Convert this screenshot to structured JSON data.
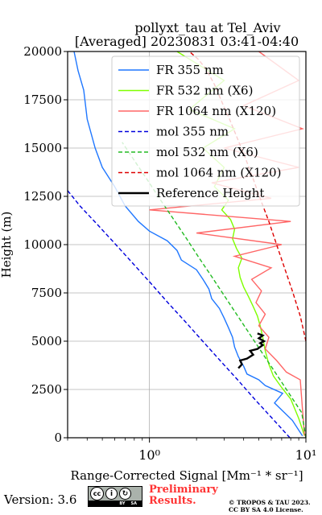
{
  "chart_data": {
    "type": "line",
    "title": "pollyxt_tau at Tel_Aviv",
    "subtitle": "[Averaged] 20230831 03:41-04:40",
    "xlabel": "Range-Corrected Signal [Mm⁻¹ * sr⁻¹]",
    "ylabel": "Height (m)",
    "xscale": "log",
    "xlim": [
      0.3,
      10
    ],
    "ylim": [
      0,
      20000
    ],
    "x_tick_labels": [
      "10⁰",
      "10¹"
    ],
    "y_ticks": [
      0,
      2500,
      5000,
      7500,
      10000,
      12500,
      15000,
      17500,
      20000
    ],
    "y_tick_labels": [
      "0",
      "2500",
      "5000",
      "7500",
      "10000",
      "12500",
      "15000",
      "17500",
      "20000"
    ],
    "grid": true,
    "legend_position": "upper right",
    "series": [
      {
        "name": "FR 355 nm",
        "color": "#1f77ff",
        "style": "solid",
        "x": [
          9.5,
          8.2,
          6.3,
          7.1,
          5.5,
          5.0,
          4.2,
          4.0,
          3.7,
          3.5,
          3.4,
          3.2,
          3.0,
          2.8,
          2.5,
          2.4,
          2.2,
          2.0,
          1.6,
          1.5,
          1.3,
          1.0,
          0.85,
          0.7,
          0.6,
          0.5,
          0.45,
          0.4,
          0.38,
          0.35,
          0.33
        ],
        "y": [
          100,
          900,
          1800,
          2300,
          2700,
          3000,
          3300,
          3700,
          4200,
          4700,
          5200,
          5700,
          6200,
          6700,
          7200,
          7700,
          8200,
          8700,
          9200,
          9700,
          10200,
          10700,
          11200,
          12000,
          13000,
          14000,
          15000,
          16500,
          18000,
          19000,
          20000
        ]
      },
      {
        "name": "FR 532 nm (X6)",
        "color": "#7fff00",
        "style": "solid",
        "x": [
          9.8,
          9.0,
          8.0,
          7.0,
          6.2,
          5.8,
          5.5,
          5.3,
          5.1,
          4.9,
          4.6,
          4.3,
          4.0,
          3.8,
          3.7,
          3.9,
          3.6,
          3.4,
          3.5,
          3.3,
          2.9,
          3.2,
          2.6,
          3.0,
          2.2,
          3.5,
          1.8,
          3.0,
          1.5
        ],
        "y": [
          100,
          1000,
          2000,
          2600,
          3200,
          3800,
          4500,
          5200,
          5800,
          6300,
          6800,
          7300,
          7800,
          8300,
          8800,
          9300,
          9800,
          10300,
          10800,
          11300,
          11800,
          12300,
          13000,
          14000,
          15000,
          16000,
          17000,
          18500,
          20000
        ]
      },
      {
        "name": "FR 1064 nm (X120)",
        "color": "#ff6666",
        "style": "solid",
        "x": [
          9.8,
          9.5,
          9.2,
          7.5,
          6.5,
          5.5,
          5.8,
          5.0,
          5.5,
          4.8,
          5.2,
          4.5,
          6.0,
          3.5,
          7.0,
          2.0,
          8.0,
          1.0,
          6.0,
          2.5,
          9.0,
          3.0,
          9.5,
          4.0,
          9.0,
          5.0
        ],
        "y": [
          100,
          1500,
          3000,
          3400,
          4000,
          4600,
          5200,
          5800,
          6400,
          7000,
          7600,
          8200,
          8800,
          9400,
          10000,
          10600,
          11200,
          11800,
          12400,
          13200,
          14000,
          15000,
          16000,
          17200,
          18500,
          20000
        ]
      },
      {
        "name": "mol 355 nm",
        "color": "#0000dd",
        "style": "dashed",
        "x": [
          7.9,
          6.1,
          4.7,
          3.66,
          2.83,
          2.19,
          1.7,
          1.31,
          1.02,
          0.79,
          0.61,
          0.47,
          0.36,
          0.3
        ],
        "y": [
          0,
          1000,
          2000,
          3000,
          4000,
          5000,
          6000,
          7000,
          8000,
          9000,
          10000,
          11000,
          12000,
          12800
        ]
      },
      {
        "name": "mol 532 nm (X6)",
        "color": "#22bb22",
        "style": "dashed",
        "x": [
          10.0,
          9.4,
          7.8,
          6.47,
          5.35,
          4.43,
          3.67,
          3.04,
          2.52,
          2.08,
          1.73,
          1.43,
          1.18,
          0.98,
          0.81,
          0.67
        ],
        "y": [
          0,
          1300,
          2300,
          3300,
          4300,
          5300,
          6300,
          7300,
          8300,
          9300,
          10300,
          11300,
          12300,
          13300,
          14300,
          15300
        ]
      },
      {
        "name": "mol 1064 nm (X120)",
        "color": "#dd0000",
        "style": "dashed",
        "x": [
          10.0,
          9.2,
          8.2,
          7.3,
          6.5,
          5.8,
          5.15,
          4.6,
          4.1,
          3.65,
          3.25,
          2.9,
          2.6,
          2.3,
          2.05,
          1.8
        ],
        "y": [
          5000,
          6300,
          7600,
          8800,
          10000,
          11200,
          12300,
          13400,
          14500,
          15500,
          16500,
          17400,
          18300,
          19100,
          19600,
          20000
        ]
      },
      {
        "name": "Reference Height",
        "color": "#000000",
        "style": "solid-thick",
        "x": [
          3.7,
          3.9,
          3.8,
          4.2,
          4.6,
          4.4,
          4.9,
          5.3,
          5.1,
          5.4,
          5.0,
          5.3,
          4.9
        ],
        "y": [
          3600,
          3800,
          4000,
          4100,
          4300,
          4500,
          4600,
          4800,
          4900,
          5000,
          5150,
          5300,
          5400
        ]
      }
    ]
  },
  "footer": {
    "version_label": "Version: 3.6",
    "preliminary_line1": "Preliminary",
    "preliminary_line2": "Results.",
    "copyright_line1": "© TROPOS & TAU 2023.",
    "copyright_line2": "CC BY SA 4.0 License.",
    "license_icons": [
      "cc",
      "by",
      "sa"
    ],
    "license_strip": [
      "BY",
      "SA"
    ]
  }
}
